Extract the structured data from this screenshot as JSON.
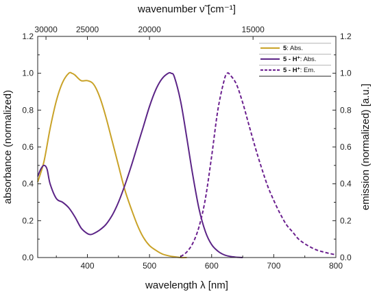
{
  "chart_data": {
    "type": "line",
    "xlabel": "wavelength λ [nm]",
    "top_xlabel": "wavenumber ν̃ [cm⁻¹]",
    "ylabel_left": "absorbance (normalized)",
    "ylabel_right": "emission (normalized) [a.u.]",
    "xlim": [
      320,
      800
    ],
    "ylim": [
      0,
      1.2
    ],
    "x_ticks": [
      400,
      500,
      600,
      700,
      800
    ],
    "y_ticks": [
      0.0,
      0.2,
      0.4,
      0.6,
      0.8,
      1.0,
      1.2
    ],
    "y_tick_labels": [
      "0.0",
      "0.2",
      "0.4",
      "0.6",
      "0.8",
      "1.0",
      "1.2"
    ],
    "top_ticks": [
      {
        "wavenumber": 30000,
        "label": "30000"
      },
      {
        "wavenumber": 25000,
        "label": "25000"
      },
      {
        "wavenumber": 20000,
        "label": "20000"
      },
      {
        "wavenumber": 15000,
        "label": "15000"
      }
    ],
    "legend": {
      "placement": "top-right",
      "entries": [
        {
          "bold": "5",
          "sup": "",
          "suffix": ": Abs.",
          "series": 0
        },
        {
          "bold": "5 - H",
          "sup": "+",
          "suffix": ": Abs.",
          "series": 1
        },
        {
          "bold": "5 - H",
          "sup": "+",
          "suffix": ": Em.",
          "series": 2
        }
      ]
    },
    "series": [
      {
        "color": "#c9a227",
        "dash": "solid",
        "x": [
          320,
          330,
          340,
          350,
          360,
          370,
          375,
          380,
          390,
          400,
          410,
          420,
          430,
          440,
          450,
          460,
          470,
          480,
          490,
          500,
          510,
          520,
          530,
          540,
          550,
          560
        ],
        "y": [
          0.41,
          0.52,
          0.7,
          0.85,
          0.95,
          1.0,
          1.0,
          0.99,
          0.96,
          0.96,
          0.94,
          0.87,
          0.76,
          0.63,
          0.5,
          0.37,
          0.27,
          0.18,
          0.11,
          0.065,
          0.04,
          0.02,
          0.01,
          0.004,
          0.0,
          0.0
        ]
      },
      {
        "color": "#5b2486",
        "dash": "solid",
        "x": [
          320,
          325,
          330,
          335,
          340,
          350,
          360,
          370,
          380,
          390,
          400,
          405,
          410,
          420,
          430,
          440,
          450,
          460,
          470,
          480,
          490,
          500,
          510,
          520,
          530,
          535,
          540,
          550,
          560,
          570,
          580,
          590,
          600,
          610,
          620,
          630,
          640,
          650
        ],
        "y": [
          0.44,
          0.48,
          0.5,
          0.48,
          0.4,
          0.32,
          0.3,
          0.27,
          0.22,
          0.16,
          0.13,
          0.125,
          0.13,
          0.15,
          0.18,
          0.23,
          0.3,
          0.39,
          0.49,
          0.6,
          0.71,
          0.82,
          0.91,
          0.97,
          1.0,
          1.0,
          0.98,
          0.85,
          0.65,
          0.44,
          0.26,
          0.14,
          0.07,
          0.035,
          0.015,
          0.006,
          0.002,
          0.0
        ]
      },
      {
        "color": "#6a1f8e",
        "dash": "dashed",
        "x": [
          550,
          560,
          570,
          580,
          590,
          600,
          610,
          620,
          625,
          630,
          640,
          650,
          660,
          670,
          680,
          690,
          700,
          710,
          720,
          730,
          740,
          750,
          760,
          770,
          780,
          790,
          800
        ],
        "y": [
          0.005,
          0.03,
          0.08,
          0.17,
          0.32,
          0.55,
          0.8,
          0.96,
          1.0,
          0.99,
          0.94,
          0.84,
          0.72,
          0.6,
          0.49,
          0.39,
          0.31,
          0.24,
          0.18,
          0.14,
          0.1,
          0.075,
          0.055,
          0.04,
          0.03,
          0.022,
          0.015
        ]
      }
    ]
  }
}
